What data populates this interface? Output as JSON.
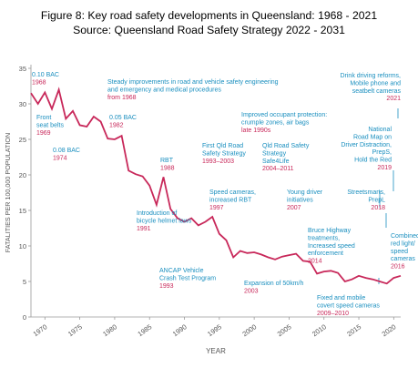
{
  "figure": {
    "title": "Figure 8: Key road safety developments in Queensland: 1968 - 2021",
    "subtitle": "Source: Queensland Road Safety Strategy 2022 - 2031"
  },
  "chart_data": {
    "type": "line",
    "xlabel": "YEAR",
    "ylabel": "FATALITIES PER 100,000 POPULATION",
    "xlim": [
      1968,
      2021
    ],
    "ylim": [
      0,
      35
    ],
    "xticks": [
      1970,
      1975,
      1980,
      1985,
      1990,
      1995,
      2000,
      2005,
      2010,
      2015,
      2020
    ],
    "yticks": [
      0,
      5,
      10,
      15,
      20,
      25,
      30,
      35
    ],
    "grid": false,
    "line_color": "#c8285a",
    "annotation_text_color": "#1a8fbf",
    "annotation_date_color": "#c8285a",
    "series": [
      {
        "x": [
          1968,
          1969,
          1970,
          1971,
          1972,
          1973,
          1974,
          1975,
          1976,
          1977,
          1978,
          1979,
          1980,
          1981,
          1982,
          1983,
          1984,
          1985,
          1986,
          1987,
          1988,
          1989,
          1990,
          1991,
          1992,
          1993,
          1994,
          1995,
          1996,
          1997,
          1998,
          1999,
          2000,
          2001,
          2002,
          2003,
          2004,
          2005,
          2006,
          2007,
          2008,
          2009,
          2010,
          2011,
          2012,
          2013,
          2014,
          2015,
          2016,
          2017,
          2018,
          2019,
          2020,
          2021
        ],
        "values": [
          31.5,
          30.0,
          31.6,
          29.3,
          32.0,
          27.9,
          29.0,
          27.0,
          26.8,
          28.2,
          27.5,
          25.1,
          25.0,
          25.5,
          20.6,
          20.1,
          19.8,
          18.5,
          15.8,
          19.7,
          15.2,
          13.9,
          13.4,
          13.9,
          12.9,
          13.4,
          14.1,
          11.7,
          10.8,
          8.4,
          9.3,
          9.0,
          9.1,
          8.8,
          8.4,
          8.1,
          8.5,
          8.7,
          8.9,
          7.9,
          7.8,
          6.1,
          6.4,
          6.5,
          6.2,
          5.0,
          5.3,
          5.8,
          5.5,
          5.3,
          5.0,
          4.7,
          5.5,
          5.8
        ]
      }
    ],
    "annotations": [
      {
        "id": "bac010",
        "lines": [
          "0.10 BAC"
        ],
        "date": "1968"
      },
      {
        "id": "seatbelts",
        "lines": [
          "Front",
          "seat belts"
        ],
        "date": "1969"
      },
      {
        "id": "bac008",
        "lines": [
          "0.08 BAC"
        ],
        "date": "1974"
      },
      {
        "id": "bac005",
        "lines": [
          "0.05 BAC"
        ],
        "date": "1982"
      },
      {
        "id": "steady",
        "lines": [
          "Steady improvements in road and vehicle safety engineering",
          "and emergency and medical procedures"
        ],
        "date": "from 1968"
      },
      {
        "id": "rbt",
        "lines": [
          "RBT"
        ],
        "date": "1988"
      },
      {
        "id": "helmet",
        "lines": [
          "Introduction of",
          "bicycle helmet laws"
        ],
        "date": "1991"
      },
      {
        "id": "ancap",
        "lines": [
          "ANCAP Vehicle",
          "Crash Test Program"
        ],
        "date": "1993"
      },
      {
        "id": "firstqld",
        "lines": [
          "First Qld Road",
          "Safety Strategy"
        ],
        "date": "1993–2003"
      },
      {
        "id": "speedcam",
        "lines": [
          "Speed cameras,",
          "increased RBT"
        ],
        "date": "1997"
      },
      {
        "id": "occupant",
        "lines": [
          "Improved occupant protection:",
          "crumple zones, air bags"
        ],
        "date": "late 1990s"
      },
      {
        "id": "safe4life",
        "lines": [
          "Qld Road Safety",
          "Strategy",
          "Safe4Life"
        ],
        "date": "2004–2011"
      },
      {
        "id": "young",
        "lines": [
          "Young driver",
          "initiatives"
        ],
        "date": "2007"
      },
      {
        "id": "fifty",
        "lines": [
          "Expansion of 50km/h"
        ],
        "date": "2003"
      },
      {
        "id": "bruce",
        "lines": [
          "Bruce Highway",
          "treatments,",
          "Increased speed",
          "enforcement"
        ],
        "date": "2014"
      },
      {
        "id": "fixed",
        "lines": [
          "Fixed and mobile",
          "covert speed cameras"
        ],
        "date": "2009–2010"
      },
      {
        "id": "drink",
        "lines": [
          "Drink driving reforms,",
          "Mobile phone and",
          "seatbelt cameras"
        ],
        "date": "2021"
      },
      {
        "id": "nationalmap",
        "lines": [
          "National",
          "Road Map on",
          "Driver Distraction,",
          "PrepS,",
          "Hold the Red"
        ],
        "date": "2019"
      },
      {
        "id": "streetsmarts",
        "lines": [
          "Streetsmarts,",
          "PrepL"
        ],
        "date": "2018"
      },
      {
        "id": "redlight",
        "lines": [
          "Combined",
          "red light/",
          "speed",
          "cameras"
        ],
        "date": "2016"
      }
    ]
  }
}
